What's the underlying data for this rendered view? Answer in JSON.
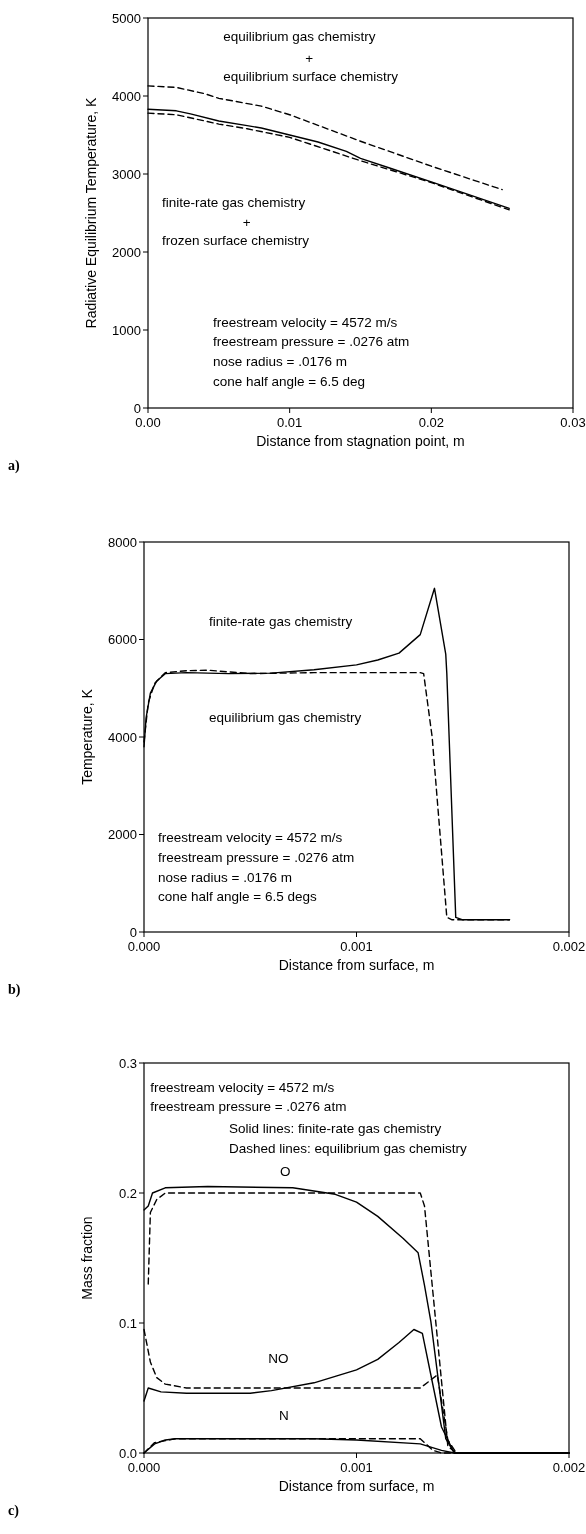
{
  "chart_data": [
    {
      "type": "line",
      "xlabel": "Distance from stagnation point, m",
      "ylabel": "Radiative Equilibrium Temperature, K",
      "xlim": [
        0,
        0.03
      ],
      "ylim": [
        0,
        5000
      ],
      "xticks": [
        {
          "value": 0,
          "label": "0.00"
        },
        {
          "value": 0.01,
          "label": "0.01"
        },
        {
          "value": 0.02,
          "label": "0.02"
        },
        {
          "value": 0.03,
          "label": "0.03"
        }
      ],
      "yticks": [
        0,
        1000,
        2000,
        3000,
        4000,
        5000
      ],
      "series": [
        {
          "color": "#000000",
          "line_style": "dashed",
          "x": [
            0,
            0.002,
            0.004,
            0.005,
            0.008,
            0.01,
            0.015,
            0.02,
            0.025
          ],
          "values": [
            4130,
            4110,
            4030,
            3970,
            3870,
            3760,
            3420,
            3100,
            2800
          ]
        },
        {
          "color": "#000000",
          "line_style": "solid",
          "x": [
            0,
            0.002,
            0.003,
            0.005,
            0.007,
            0.008,
            0.01,
            0.012,
            0.014,
            0.015,
            0.017,
            0.02,
            0.0255
          ],
          "values": [
            3830,
            3810,
            3770,
            3680,
            3620,
            3590,
            3500,
            3410,
            3290,
            3200,
            3080,
            2900,
            2560
          ]
        },
        {
          "color": "#000000",
          "line_style": "dashed",
          "x": [
            0,
            0.002,
            0.005,
            0.007,
            0.01,
            0.015,
            0.02,
            0.0255
          ],
          "values": [
            3780,
            3760,
            3640,
            3580,
            3470,
            3170,
            2890,
            2540
          ]
        }
      ],
      "annotations": [
        "equilibrium gas chemistry",
        "+",
        "equilibrium surface chemistry",
        "finite-rate gas chemistry",
        "+",
        "frozen surface chemistry",
        "freestream velocity = 4572 m/s",
        "freestream pressure = .0276 atm",
        "nose radius = .0176 m",
        "cone half angle = 6.5 deg",
        "a)"
      ]
    },
    {
      "type": "line",
      "xlabel": "Distance from surface, m",
      "ylabel": "Temperature, K",
      "xlim": [
        0,
        0.002
      ],
      "ylim": [
        0,
        8000
      ],
      "xticks": [
        {
          "value": 0,
          "label": "0.000"
        },
        {
          "value": 0.001,
          "label": "0.001"
        },
        {
          "value": 0.002,
          "label": "0.002"
        }
      ],
      "yticks": [
        0,
        2000,
        4000,
        6000,
        8000
      ],
      "series": [
        {
          "color": "#000000",
          "line_style": "solid",
          "x": [
            0,
            1e-05,
            3e-05,
            6e-05,
            0.0001,
            0.0002,
            0.0004,
            0.0006,
            0.0008,
            0.001,
            0.0011,
            0.0012,
            0.0013,
            0.001367,
            0.00142,
            0.001425,
            0.001467,
            0.0015,
            0.00172
          ],
          "values": [
            3800,
            4400,
            4900,
            5150,
            5300,
            5320,
            5300,
            5310,
            5380,
            5480,
            5580,
            5720,
            6100,
            7050,
            5700,
            5300,
            300,
            250,
            250
          ]
        },
        {
          "color": "#000000",
          "line_style": "dashed",
          "x": [
            0,
            2e-05,
            5e-05,
            0.0001,
            0.0002,
            0.0003,
            0.0005,
            0.0008,
            0.0013,
            0.001316,
            0.001356,
            0.001425,
            0.00145,
            0.00172
          ],
          "values": [
            3900,
            4700,
            5100,
            5320,
            5360,
            5370,
            5300,
            5320,
            5320,
            5300,
            4000,
            300,
            250,
            250
          ]
        }
      ],
      "annotations": [
        "finite-rate gas chemistry",
        "equilibrium gas chemistry",
        "freestream velocity = 4572 m/s",
        "freestream pressure = .0276 atm",
        "nose radius = .0176 m",
        "cone half angle = 6.5 degs",
        "b)"
      ]
    },
    {
      "type": "line",
      "xlabel": "Distance from surface, m",
      "ylabel": "Mass fraction",
      "xlim": [
        0,
        0.002
      ],
      "ylim": [
        0,
        0.3
      ],
      "xticks": [
        {
          "value": 0,
          "label": "0.000"
        },
        {
          "value": 0.001,
          "label": "0.001"
        },
        {
          "value": 0.002,
          "label": "0.002"
        }
      ],
      "yticks": [
        {
          "value": 0,
          "label": "0.0"
        },
        {
          "value": 0.1,
          "label": "0.1"
        },
        {
          "value": 0.2,
          "label": "0.2"
        },
        {
          "value": 0.3,
          "label": "0.3"
        }
      ],
      "series": [
        {
          "color": "#000000",
          "line_style": "solid",
          "x": [
            0,
            2e-05,
            4e-05,
            0.0001,
            0.0003,
            0.0007,
            0.0009,
            0.001,
            0.0011,
            0.00122,
            0.00129,
            0.00132,
            0.00135,
            0.00142,
            0.00146,
            0.002
          ],
          "values": [
            0.187,
            0.19,
            0.2,
            0.204,
            0.205,
            0.204,
            0.199,
            0.193,
            0.182,
            0.165,
            0.154,
            0.129,
            0.101,
            0.011,
            0,
            0
          ]
        },
        {
          "color": "#000000",
          "line_style": "dashed",
          "x": [
            2e-05,
            3e-05,
            6e-05,
            0.0001,
            0.0013,
            0.00132,
            0.00143,
            0.00147,
            0.002
          ],
          "values": [
            0.13,
            0.185,
            0.195,
            0.2,
            0.2,
            0.19,
            0.005,
            0,
            0
          ]
        },
        {
          "color": "#000000",
          "line_style": "solid",
          "x": [
            0,
            2e-05,
            8e-05,
            0.0002,
            0.0005,
            0.0006,
            0.0008,
            0.001,
            0.0011,
            0.0012,
            0.00127,
            0.00131,
            0.00135,
            0.0014,
            0.00146,
            0.002
          ],
          "values": [
            0.04,
            0.05,
            0.047,
            0.046,
            0.046,
            0.048,
            0.054,
            0.064,
            0.072,
            0.085,
            0.095,
            0.092,
            0.06,
            0.02,
            0,
            0
          ]
        },
        {
          "color": "#000000",
          "line_style": "dashed",
          "x": [
            0,
            3e-05,
            6e-05,
            0.0001,
            0.0002,
            0.0013,
            0.00138,
            0.00143,
            0.00147,
            0.002
          ],
          "values": [
            0.095,
            0.07,
            0.058,
            0.053,
            0.05,
            0.05,
            0.06,
            0.01,
            0,
            0
          ]
        },
        {
          "color": "#000000",
          "line_style": "solid",
          "x": [
            0,
            5e-05,
            0.0001,
            0.00015,
            0.0008,
            0.001,
            0.0013,
            0.0014,
            0.00146,
            0.002
          ],
          "values": [
            0,
            0.007,
            0.01,
            0.011,
            0.011,
            0.01,
            0.007,
            0.002,
            0,
            0
          ]
        },
        {
          "color": "#000000",
          "line_style": "dashed",
          "x": [
            0,
            5e-05,
            0.00015,
            0.0013,
            0.00136,
            0.0014,
            0.002
          ],
          "values": [
            0,
            0.008,
            0.011,
            0.011,
            0.002,
            0,
            0
          ]
        }
      ],
      "annotations": [
        "freestream velocity = 4572 m/s",
        "freestream pressure = .0276 atm",
        "Solid lines: finite-rate gas chemistry",
        "Dashed lines: equilibrium gas chemistry",
        "O",
        "NO",
        "N",
        "c)"
      ]
    }
  ]
}
